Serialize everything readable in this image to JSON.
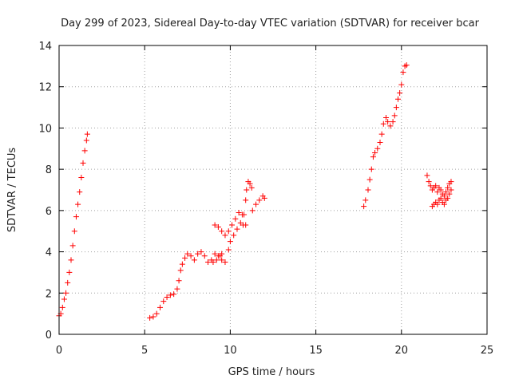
{
  "chart_data": {
    "type": "scatter",
    "title": "Day 299 of 2023, Sidereal Day-to-day VTEC variation (SDTVAR) for receiver bcar",
    "xlabel": "GPS time / hours",
    "ylabel": "SDTVAR / TECUs",
    "xlim": [
      0,
      25
    ],
    "ylim": [
      0,
      14
    ],
    "xticks": [
      0,
      5,
      10,
      15,
      20,
      25
    ],
    "yticks": [
      0,
      2,
      4,
      6,
      8,
      10,
      12,
      14
    ],
    "grid": true,
    "marker": "+",
    "series": [
      {
        "name": "SDTVAR",
        "color": "#ff0000",
        "segments": [
          [
            [
              0.0,
              0.9
            ],
            [
              0.1,
              1.0
            ],
            [
              0.2,
              1.3
            ],
            [
              0.3,
              1.7
            ],
            [
              0.4,
              2.0
            ],
            [
              0.5,
              2.5
            ],
            [
              0.6,
              3.0
            ],
            [
              0.7,
              3.6
            ],
            [
              0.8,
              4.3
            ],
            [
              0.9,
              5.0
            ],
            [
              1.0,
              5.7
            ],
            [
              1.1,
              6.3
            ],
            [
              1.2,
              6.9
            ],
            [
              1.3,
              7.6
            ],
            [
              1.4,
              8.3
            ],
            [
              1.5,
              8.9
            ],
            [
              1.6,
              9.4
            ],
            [
              1.65,
              9.7
            ]
          ],
          [
            [
              5.3,
              0.8
            ],
            [
              5.5,
              0.85
            ],
            [
              5.7,
              1.0
            ],
            [
              5.9,
              1.3
            ],
            [
              6.1,
              1.6
            ],
            [
              6.3,
              1.8
            ],
            [
              6.5,
              1.9
            ],
            [
              6.7,
              1.95
            ],
            [
              6.9,
              2.2
            ],
            [
              7.0,
              2.6
            ],
            [
              7.1,
              3.1
            ],
            [
              7.2,
              3.4
            ],
            [
              7.35,
              3.7
            ],
            [
              7.5,
              3.9
            ],
            [
              7.7,
              3.8
            ],
            [
              7.9,
              3.6
            ],
            [
              8.1,
              3.9
            ],
            [
              8.3,
              4.0
            ],
            [
              8.5,
              3.8
            ],
            [
              8.7,
              3.5
            ],
            [
              8.9,
              3.6
            ],
            [
              9.1,
              3.9
            ],
            [
              9.3,
              3.8
            ],
            [
              9.5,
              3.6
            ],
            [
              9.7,
              3.5
            ],
            [
              9.9,
              4.1
            ],
            [
              10.0,
              4.5
            ],
            [
              10.2,
              4.8
            ],
            [
              10.4,
              5.1
            ],
            [
              10.6,
              5.4
            ],
            [
              10.75,
              5.3
            ],
            [
              10.8,
              5.8
            ],
            [
              10.9,
              6.5
            ],
            [
              10.95,
              7.0
            ],
            [
              11.05,
              7.4
            ],
            [
              11.15,
              7.3
            ],
            [
              11.25,
              7.1
            ]
          ],
          [
            [
              9.1,
              5.3
            ],
            [
              9.3,
              5.2
            ],
            [
              9.5,
              5.0
            ],
            [
              9.7,
              4.8
            ],
            [
              9.9,
              5.0
            ],
            [
              10.1,
              5.3
            ],
            [
              10.3,
              5.6
            ],
            [
              10.5,
              5.9
            ],
            [
              10.7,
              5.8
            ],
            [
              10.9,
              5.3
            ]
          ],
          [
            [
              9.0,
              3.5
            ],
            [
              9.2,
              3.6
            ],
            [
              9.4,
              3.8
            ],
            [
              9.5,
              3.9
            ]
          ],
          [
            [
              11.3,
              6.0
            ],
            [
              11.5,
              6.3
            ],
            [
              11.7,
              6.5
            ],
            [
              11.9,
              6.7
            ],
            [
              12.0,
              6.6
            ]
          ],
          [
            [
              17.8,
              6.2
            ],
            [
              17.9,
              6.5
            ],
            [
              18.05,
              7.0
            ],
            [
              18.15,
              7.5
            ],
            [
              18.25,
              8.0
            ],
            [
              18.35,
              8.6
            ],
            [
              18.45,
              8.8
            ],
            [
              18.6,
              9.0
            ],
            [
              18.75,
              9.3
            ],
            [
              18.85,
              9.7
            ],
            [
              18.95,
              10.2
            ],
            [
              19.1,
              10.5
            ],
            [
              19.2,
              10.3
            ],
            [
              19.35,
              10.1
            ],
            [
              19.5,
              10.3
            ],
            [
              19.6,
              10.6
            ],
            [
              19.7,
              11.0
            ],
            [
              19.8,
              11.4
            ],
            [
              19.9,
              11.7
            ],
            [
              20.0,
              12.1
            ],
            [
              20.1,
              12.7
            ],
            [
              20.2,
              13.0
            ],
            [
              20.3,
              13.05
            ]
          ],
          [
            [
              21.5,
              7.7
            ],
            [
              21.6,
              7.4
            ],
            [
              21.7,
              7.2
            ],
            [
              21.8,
              7.0
            ],
            [
              21.9,
              7.1
            ],
            [
              22.0,
              7.2
            ],
            [
              22.1,
              6.9
            ],
            [
              22.2,
              7.1
            ],
            [
              22.3,
              7.0
            ],
            [
              22.4,
              6.8
            ],
            [
              22.5,
              6.7
            ],
            [
              22.6,
              6.9
            ],
            [
              22.7,
              7.1
            ],
            [
              22.8,
              7.3
            ],
            [
              22.9,
              7.4
            ]
          ],
          [
            [
              21.8,
              6.2
            ],
            [
              21.9,
              6.3
            ],
            [
              22.0,
              6.4
            ],
            [
              22.1,
              6.3
            ],
            [
              22.2,
              6.5
            ],
            [
              22.3,
              6.6
            ],
            [
              22.4,
              6.4
            ],
            [
              22.5,
              6.3
            ],
            [
              22.6,
              6.5
            ],
            [
              22.7,
              6.6
            ],
            [
              22.8,
              6.8
            ],
            [
              22.9,
              7.0
            ]
          ]
        ]
      }
    ]
  }
}
